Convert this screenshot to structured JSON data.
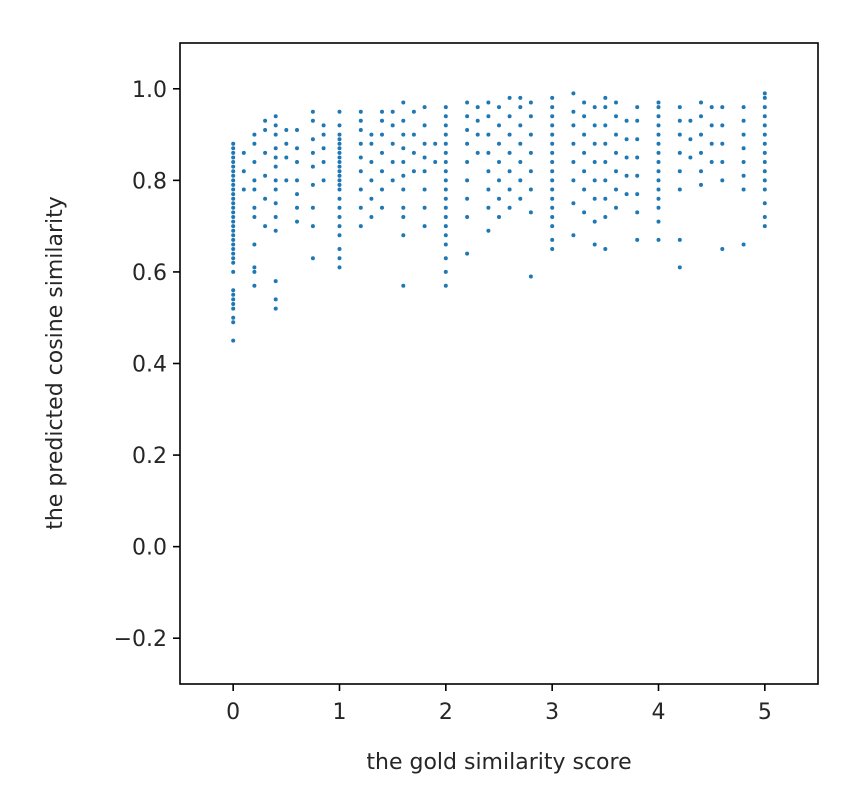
{
  "chart_data": {
    "type": "scatter",
    "title": "",
    "xlabel": "the gold similarity score",
    "ylabel": "the predicted cosine similarity",
    "xlim": [
      -0.5,
      5.5
    ],
    "ylim": [
      -0.3,
      1.1
    ],
    "grid": false,
    "legend": "none",
    "marker_color": "#1f77b4",
    "x_ticks": [
      0,
      1,
      2,
      3,
      4,
      5
    ],
    "x_tick_labels": [
      "0",
      "1",
      "2",
      "3",
      "4",
      "5"
    ],
    "y_ticks": [
      -0.2,
      0.0,
      0.2,
      0.4,
      0.6,
      0.8,
      1.0
    ],
    "y_tick_labels": [
      "−0.2",
      "0.0",
      "0.2",
      "0.4",
      "0.6",
      "0.8",
      "1.0"
    ],
    "columns": [
      {
        "x": 0.0,
        "y": [
          0.45,
          0.49,
          0.5,
          0.52,
          0.53,
          0.54,
          0.55,
          0.56,
          0.6,
          0.62,
          0.63,
          0.64,
          0.65,
          0.66,
          0.67,
          0.68,
          0.69,
          0.7,
          0.71,
          0.72,
          0.73,
          0.74,
          0.75,
          0.76,
          0.77,
          0.78,
          0.79,
          0.8,
          0.81,
          0.82,
          0.83,
          0.84,
          0.85,
          0.86,
          0.87,
          0.88
        ]
      },
      {
        "x": 0.1,
        "y": [
          0.78,
          0.82,
          0.86
        ]
      },
      {
        "x": 0.2,
        "y": [
          0.57,
          0.6,
          0.61,
          0.66,
          0.72,
          0.74,
          0.78,
          0.8,
          0.84,
          0.88,
          0.9
        ]
      },
      {
        "x": 0.3,
        "y": [
          0.7,
          0.76,
          0.81,
          0.86,
          0.91,
          0.93
        ]
      },
      {
        "x": 0.4,
        "y": [
          0.52,
          0.54,
          0.58,
          0.69,
          0.72,
          0.75,
          0.78,
          0.8,
          0.83,
          0.85,
          0.87,
          0.9,
          0.92,
          0.94
        ]
      },
      {
        "x": 0.5,
        "y": [
          0.8,
          0.85,
          0.88,
          0.91
        ]
      },
      {
        "x": 0.6,
        "y": [
          0.71,
          0.74,
          0.77,
          0.8,
          0.84,
          0.87,
          0.91
        ]
      },
      {
        "x": 0.75,
        "y": [
          0.63,
          0.7,
          0.74,
          0.79,
          0.83,
          0.86,
          0.89,
          0.93,
          0.95
        ]
      },
      {
        "x": 0.85,
        "y": [
          0.8,
          0.84,
          0.87,
          0.9,
          0.92
        ]
      },
      {
        "x": 1.0,
        "y": [
          0.61,
          0.63,
          0.65,
          0.68,
          0.7,
          0.72,
          0.74,
          0.76,
          0.78,
          0.79,
          0.8,
          0.81,
          0.82,
          0.83,
          0.84,
          0.85,
          0.86,
          0.87,
          0.88,
          0.89,
          0.9,
          0.92,
          0.95
        ]
      },
      {
        "x": 1.2,
        "y": [
          0.7,
          0.74,
          0.78,
          0.82,
          0.85,
          0.88,
          0.91,
          0.93,
          0.95
        ]
      },
      {
        "x": 1.3,
        "y": [
          0.72,
          0.76,
          0.8,
          0.84,
          0.88,
          0.9
        ]
      },
      {
        "x": 1.4,
        "y": [
          0.74,
          0.78,
          0.82,
          0.86,
          0.9,
          0.93,
          0.95
        ]
      },
      {
        "x": 1.5,
        "y": [
          0.8,
          0.84,
          0.88,
          0.92,
          0.95
        ]
      },
      {
        "x": 1.6,
        "y": [
          0.57,
          0.68,
          0.72,
          0.74,
          0.78,
          0.81,
          0.84,
          0.87,
          0.9,
          0.93,
          0.97
        ]
      },
      {
        "x": 1.7,
        "y": [
          0.82,
          0.86,
          0.9,
          0.95
        ]
      },
      {
        "x": 1.8,
        "y": [
          0.7,
          0.74,
          0.78,
          0.82,
          0.85,
          0.88,
          0.92,
          0.96
        ]
      },
      {
        "x": 1.9,
        "y": [
          0.84,
          0.88
        ]
      },
      {
        "x": 2.0,
        "y": [
          0.57,
          0.6,
          0.63,
          0.66,
          0.68,
          0.7,
          0.72,
          0.74,
          0.76,
          0.78,
          0.8,
          0.82,
          0.84,
          0.86,
          0.88,
          0.9,
          0.92,
          0.94,
          0.96
        ]
      },
      {
        "x": 2.2,
        "y": [
          0.64,
          0.72,
          0.76,
          0.8,
          0.84,
          0.88,
          0.91,
          0.94,
          0.97
        ]
      },
      {
        "x": 2.3,
        "y": [
          0.86,
          0.9,
          0.93,
          0.96
        ]
      },
      {
        "x": 2.4,
        "y": [
          0.69,
          0.74,
          0.78,
          0.82,
          0.86,
          0.9,
          0.94,
          0.97
        ]
      },
      {
        "x": 2.5,
        "y": [
          0.72,
          0.76,
          0.8,
          0.84,
          0.88,
          0.92,
          0.96
        ]
      },
      {
        "x": 2.6,
        "y": [
          0.74,
          0.78,
          0.82,
          0.86,
          0.9,
          0.94,
          0.98
        ]
      },
      {
        "x": 2.7,
        "y": [
          0.76,
          0.8,
          0.84,
          0.88,
          0.92,
          0.96,
          0.98
        ]
      },
      {
        "x": 2.8,
        "y": [
          0.59,
          0.73,
          0.78,
          0.82,
          0.86,
          0.9,
          0.94,
          0.97
        ]
      },
      {
        "x": 3.0,
        "y": [
          0.65,
          0.67,
          0.7,
          0.72,
          0.74,
          0.76,
          0.78,
          0.8,
          0.82,
          0.84,
          0.86,
          0.88,
          0.9,
          0.92,
          0.94,
          0.96,
          0.98
        ]
      },
      {
        "x": 3.2,
        "y": [
          0.68,
          0.75,
          0.8,
          0.84,
          0.88,
          0.92,
          0.95,
          0.99
        ]
      },
      {
        "x": 3.3,
        "y": [
          0.73,
          0.78,
          0.82,
          0.86,
          0.9,
          0.94,
          0.97
        ]
      },
      {
        "x": 3.4,
        "y": [
          0.66,
          0.71,
          0.76,
          0.8,
          0.84,
          0.88,
          0.92,
          0.96
        ]
      },
      {
        "x": 3.5,
        "y": [
          0.65,
          0.72,
          0.76,
          0.8,
          0.84,
          0.88,
          0.92,
          0.96,
          0.98
        ]
      },
      {
        "x": 3.6,
        "y": [
          0.74,
          0.78,
          0.82,
          0.86,
          0.9,
          0.94,
          0.97
        ]
      },
      {
        "x": 3.7,
        "y": [
          0.77,
          0.81,
          0.85,
          0.89,
          0.93
        ]
      },
      {
        "x": 3.8,
        "y": [
          0.67,
          0.73,
          0.77,
          0.81,
          0.85,
          0.89,
          0.93,
          0.96
        ]
      },
      {
        "x": 4.0,
        "y": [
          0.67,
          0.71,
          0.74,
          0.76,
          0.78,
          0.8,
          0.82,
          0.84,
          0.86,
          0.88,
          0.9,
          0.92,
          0.94,
          0.96,
          0.97
        ]
      },
      {
        "x": 4.2,
        "y": [
          0.61,
          0.67,
          0.78,
          0.82,
          0.86,
          0.9,
          0.93,
          0.96
        ]
      },
      {
        "x": 4.3,
        "y": [
          0.85,
          0.89,
          0.93
        ]
      },
      {
        "x": 4.4,
        "y": [
          0.79,
          0.82,
          0.86,
          0.9,
          0.94,
          0.97
        ]
      },
      {
        "x": 4.5,
        "y": [
          0.84,
          0.88,
          0.92,
          0.96
        ]
      },
      {
        "x": 4.6,
        "y": [
          0.65,
          0.8,
          0.84,
          0.88,
          0.92,
          0.96
        ]
      },
      {
        "x": 4.8,
        "y": [
          0.66,
          0.78,
          0.81,
          0.84,
          0.87,
          0.9,
          0.93,
          0.96
        ]
      },
      {
        "x": 5.0,
        "y": [
          0.7,
          0.72,
          0.75,
          0.78,
          0.8,
          0.82,
          0.84,
          0.86,
          0.88,
          0.9,
          0.92,
          0.94,
          0.96,
          0.98,
          0.99
        ]
      }
    ]
  }
}
